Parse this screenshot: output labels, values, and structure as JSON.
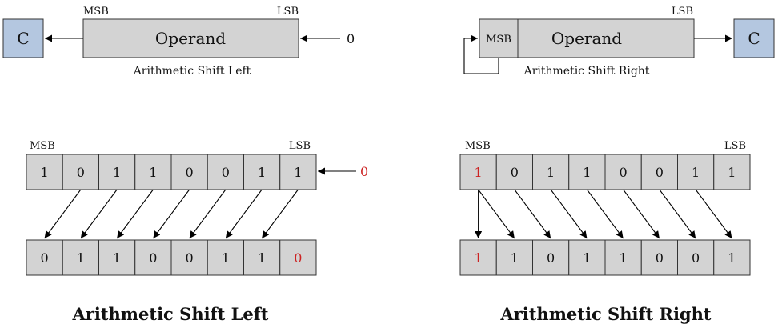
{
  "colors": {
    "highlight": "#cc2222",
    "register": "#d3d3d3",
    "carry": "#b4c7e0"
  },
  "left": {
    "carry_label": "C",
    "operand_label": "Operand",
    "msb_label": "MSB",
    "lsb_label": "LSB",
    "input_label": "0",
    "caption": "Arithmetic Shift Left",
    "before_bits": [
      "1",
      "0",
      "1",
      "1",
      "0",
      "0",
      "1",
      "1"
    ],
    "after_bits": [
      "0",
      "1",
      "1",
      "0",
      "0",
      "1",
      "1",
      "0"
    ],
    "fill_in": "0",
    "title": "Arithmetic Shift Left"
  },
  "right": {
    "carry_label": "C",
    "operand_label": "Operand",
    "msb_label": "MSB",
    "lsb_label": "LSB",
    "caption": "Arithmetic Shift Right",
    "before_bits": [
      "1",
      "0",
      "1",
      "1",
      "0",
      "0",
      "1",
      "1"
    ],
    "after_bits": [
      "1",
      "1",
      "0",
      "1",
      "1",
      "0",
      "0",
      "1"
    ],
    "title": "Arithmetic Shift Right"
  }
}
